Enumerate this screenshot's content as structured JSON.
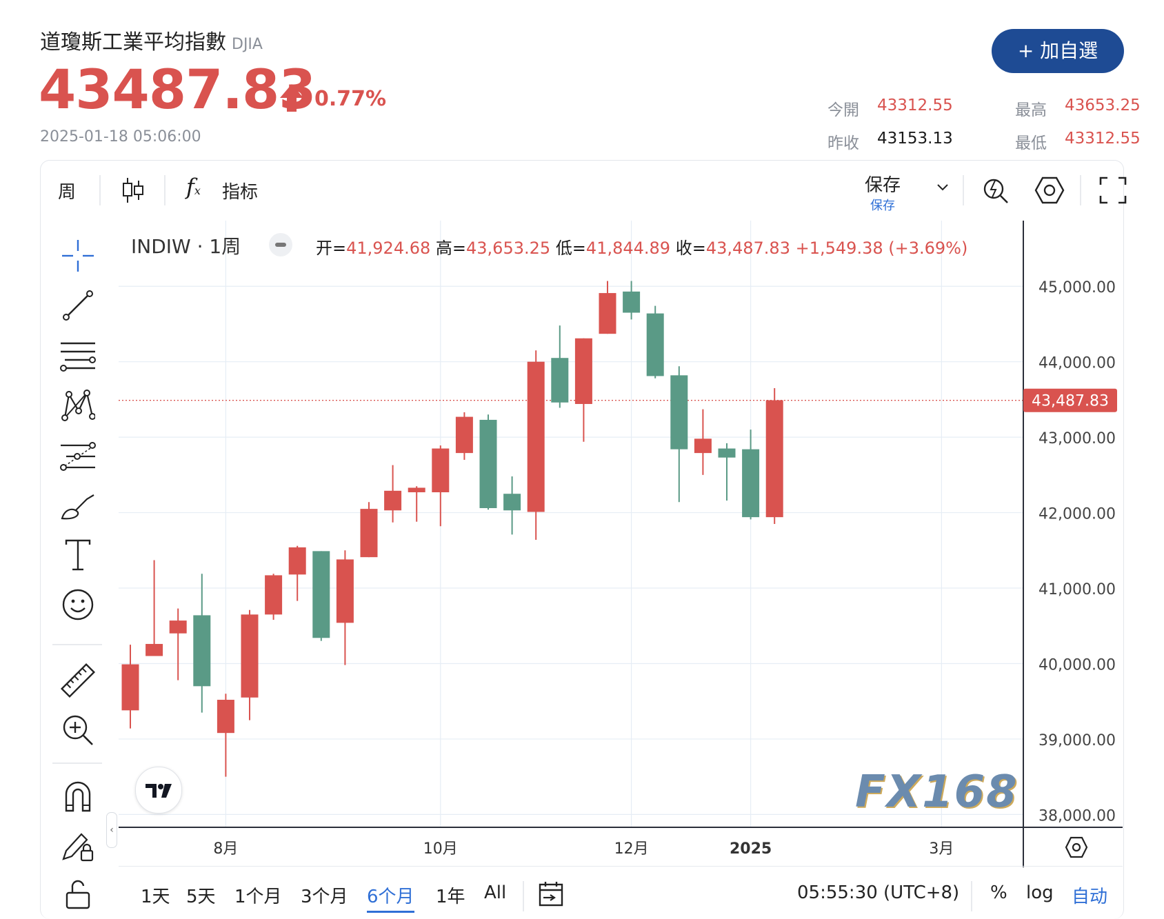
{
  "header": {
    "title": "道瓊斯工業平均指數",
    "code": "DJIA",
    "price": "43487.83",
    "change_pct": "0.77%",
    "datetime": "2025-01-18 05:06:00",
    "watch_label": "+ 加自選"
  },
  "stats": {
    "open_label": "今開",
    "open_value": "43312.55",
    "high_label": "最高",
    "high_value": "43653.25",
    "prev_label": "昨收",
    "prev_value": "43153.13",
    "low_label": "最低",
    "low_value": "43312.55"
  },
  "toolbar": {
    "interval": "周",
    "indicators_label": "指标",
    "save_label": "保存",
    "save_sub": "保存"
  },
  "legend": {
    "symbol": "INDIW · 1周",
    "open_label": "开=",
    "open_value": "41,924.68",
    "high_label": "高=",
    "high_value": "43,653.25",
    "low_label": "低=",
    "low_value": "41,844.89",
    "close_label": "收=",
    "close_value": "43,487.83",
    "change": "+1,549.38 (+3.69%)"
  },
  "watermark": "FX168",
  "colors": {
    "up": "#d9534f",
    "down": "#5a9a86",
    "accent": "#1e4b94",
    "grid": "#e6edf5"
  },
  "bottom": {
    "ranges": [
      "1天",
      "5天",
      "1个月",
      "3个月",
      "6个月",
      "1年",
      "All"
    ],
    "active_range": "6个月",
    "clock": "05:55:30 (UTC+8)",
    "pct_label": "%",
    "log_label": "log",
    "auto_label": "自动"
  },
  "chart_data": {
    "type": "candlestick",
    "y_ticks": [
      "45,000.00",
      "44,000.00",
      "43,000.00",
      "42,000.00",
      "41,000.00",
      "40,000.00",
      "39,000.00",
      "38,000.00"
    ],
    "y_tick_values": [
      45000,
      44000,
      43000,
      42000,
      41000,
      40000,
      39000,
      38000
    ],
    "x_ticks": [
      {
        "label": "8月",
        "index": 4
      },
      {
        "label": "10月",
        "index": 13
      },
      {
        "label": "12月",
        "index": 21
      },
      {
        "label": "2025",
        "index": 26
      },
      {
        "label": "3月",
        "index": 34
      }
    ],
    "ylim": [
      37830,
      45870
    ],
    "last_price": 43487.83,
    "last_price_label": "43,487.83",
    "candles": [
      {
        "o": 39380,
        "h": 40250,
        "l": 39140,
        "c": 39990
      },
      {
        "o": 40100,
        "h": 41370,
        "l": 40100,
        "c": 40260
      },
      {
        "o": 40400,
        "h": 40730,
        "l": 39780,
        "c": 40570
      },
      {
        "o": 40640,
        "h": 41190,
        "l": 39350,
        "c": 39700
      },
      {
        "o": 39080,
        "h": 39600,
        "l": 38500,
        "c": 39520
      },
      {
        "o": 39550,
        "h": 40710,
        "l": 39250,
        "c": 40650
      },
      {
        "o": 40650,
        "h": 41190,
        "l": 40580,
        "c": 41170
      },
      {
        "o": 41180,
        "h": 41560,
        "l": 40830,
        "c": 41540
      },
      {
        "o": 41490,
        "h": 41490,
        "l": 40300,
        "c": 40340
      },
      {
        "o": 40540,
        "h": 41500,
        "l": 39980,
        "c": 41380
      },
      {
        "o": 41410,
        "h": 42140,
        "l": 41410,
        "c": 42050
      },
      {
        "o": 42030,
        "h": 42630,
        "l": 41870,
        "c": 42290
      },
      {
        "o": 42270,
        "h": 42350,
        "l": 41880,
        "c": 42330
      },
      {
        "o": 42270,
        "h": 42890,
        "l": 41820,
        "c": 42850
      },
      {
        "o": 42790,
        "h": 43330,
        "l": 42700,
        "c": 43270
      },
      {
        "o": 43230,
        "h": 43300,
        "l": 42040,
        "c": 42060
      },
      {
        "o": 42250,
        "h": 42480,
        "l": 41710,
        "c": 42030
      },
      {
        "o": 42010,
        "h": 44150,
        "l": 41640,
        "c": 44000
      },
      {
        "o": 44050,
        "h": 44480,
        "l": 43390,
        "c": 43460
      },
      {
        "o": 43440,
        "h": 44310,
        "l": 42940,
        "c": 44310
      },
      {
        "o": 44370,
        "h": 45070,
        "l": 44370,
        "c": 44910
      },
      {
        "o": 44930,
        "h": 45070,
        "l": 44560,
        "c": 44650
      },
      {
        "o": 44640,
        "h": 44740,
        "l": 43780,
        "c": 43810
      },
      {
        "o": 43820,
        "h": 43940,
        "l": 42140,
        "c": 42840
      },
      {
        "o": 42790,
        "h": 43370,
        "l": 42500,
        "c": 42980
      },
      {
        "o": 42850,
        "h": 42920,
        "l": 42160,
        "c": 42730
      },
      {
        "o": 42840,
        "h": 43100,
        "l": 41910,
        "c": 41940
      },
      {
        "o": 41940,
        "h": 43650,
        "l": 41850,
        "c": 43490
      }
    ]
  }
}
